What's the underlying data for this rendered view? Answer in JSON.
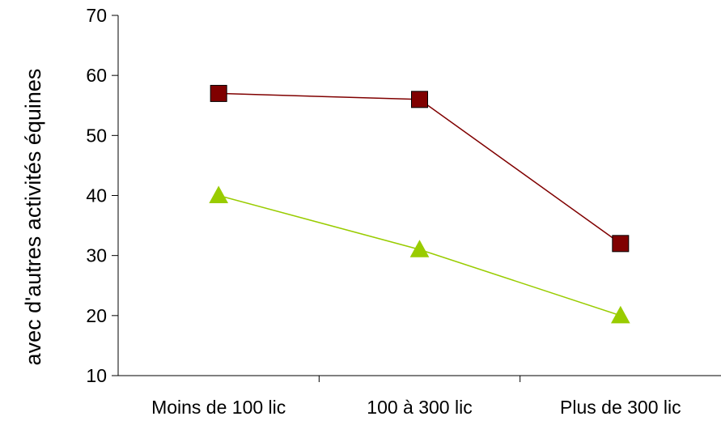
{
  "chart_data": {
    "type": "line",
    "title": "",
    "xlabel": "",
    "ylabel": "avec d'autres activités équines",
    "categories": [
      "Moins de 100 lic",
      "100 à 300 lic",
      "Plus de 300 lic"
    ],
    "ylim": [
      10,
      70
    ],
    "yticks": [
      "10",
      "20",
      "30",
      "40",
      "50",
      "60",
      "70"
    ],
    "grid": false,
    "legend": "none",
    "series": [
      {
        "values": [
          57,
          56,
          32
        ],
        "color": "#800000",
        "marker": "square"
      },
      {
        "values": [
          40,
          31,
          20
        ],
        "color": "#99CC00",
        "marker": "triangle"
      }
    ]
  }
}
